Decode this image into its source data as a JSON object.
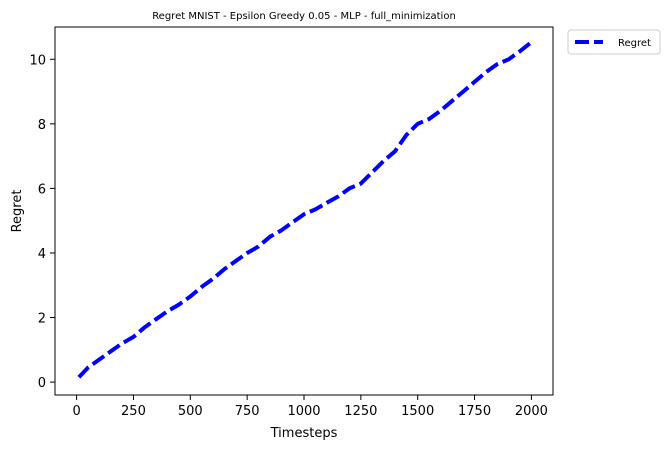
{
  "chart_data": {
    "type": "line",
    "title": "Regret MNIST - Epsilon Greedy 0.05 - MLP - full_minimization",
    "xlabel": "Timesteps",
    "ylabel": "Regret",
    "xlim": [
      -95,
      2095
    ],
    "ylim": [
      -0.4,
      11.0
    ],
    "xticks": [
      0,
      250,
      500,
      750,
      1000,
      1250,
      1500,
      1750,
      2000
    ],
    "yticks": [
      0,
      2,
      4,
      6,
      8,
      10
    ],
    "grid": false,
    "legend_position": "outside-top-right",
    "series": [
      {
        "name": "Regret",
        "color": "#0000ff",
        "line_style": "dashed",
        "x": [
          10,
          50,
          100,
          150,
          200,
          250,
          300,
          350,
          400,
          450,
          500,
          550,
          600,
          650,
          700,
          750,
          800,
          850,
          900,
          950,
          1000,
          1050,
          1100,
          1150,
          1200,
          1250,
          1300,
          1350,
          1400,
          1450,
          1500,
          1550,
          1600,
          1650,
          1700,
          1750,
          1800,
          1850,
          1900,
          1950,
          1995
        ],
        "y": [
          0.15,
          0.45,
          0.7,
          0.95,
          1.2,
          1.4,
          1.7,
          1.95,
          2.2,
          2.4,
          2.65,
          2.95,
          3.2,
          3.5,
          3.75,
          4.0,
          4.2,
          4.5,
          4.7,
          4.95,
          5.2,
          5.35,
          5.55,
          5.75,
          6.0,
          6.15,
          6.5,
          6.85,
          7.15,
          7.65,
          8.0,
          8.15,
          8.4,
          8.7,
          9.0,
          9.3,
          9.6,
          9.85,
          10.0,
          10.25,
          10.5
        ]
      }
    ]
  }
}
